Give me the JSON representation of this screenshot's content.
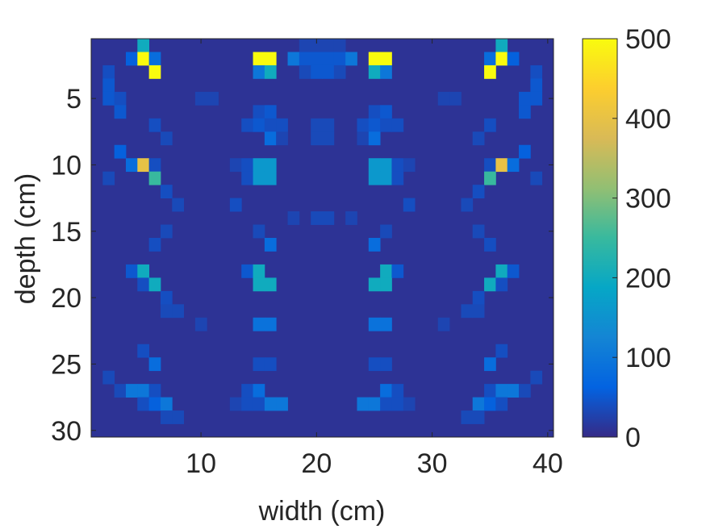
{
  "chart_data": {
    "type": "heatmap",
    "title": "",
    "xlabel": "width (cm)",
    "ylabel": "depth (cm)",
    "xlim": [
      0.5,
      40.5
    ],
    "ylim": [
      0.5,
      30.5
    ],
    "y_reversed": true,
    "x_ticks": [
      10,
      20,
      30,
      40
    ],
    "y_ticks": [
      5,
      10,
      15,
      20,
      25,
      30
    ],
    "colorbar": {
      "range": [
        0,
        500
      ],
      "ticks": [
        0,
        100,
        200,
        300,
        400,
        500
      ],
      "colormap": "parula",
      "colormap_stops": [
        "#352a87",
        "#0363e1",
        "#1485d4",
        "#06a7c6",
        "#38b99e",
        "#92bf73",
        "#d9ba56",
        "#fcce2e",
        "#f9fb0e"
      ]
    },
    "background_value": 10,
    "cells": [
      [
        1,
        5,
        200
      ],
      [
        1,
        19,
        30
      ],
      [
        1,
        20,
        30
      ],
      [
        1,
        21,
        30
      ],
      [
        1,
        22,
        30
      ],
      [
        1,
        36,
        200
      ],
      [
        2,
        4,
        60
      ],
      [
        2,
        5,
        500
      ],
      [
        2,
        6,
        80
      ],
      [
        2,
        15,
        500
      ],
      [
        2,
        16,
        500
      ],
      [
        2,
        18,
        100
      ],
      [
        2,
        19,
        50
      ],
      [
        2,
        20,
        50
      ],
      [
        2,
        21,
        50
      ],
      [
        2,
        22,
        50
      ],
      [
        2,
        23,
        100
      ],
      [
        2,
        25,
        500
      ],
      [
        2,
        26,
        500
      ],
      [
        2,
        35,
        80
      ],
      [
        2,
        36,
        500
      ],
      [
        2,
        37,
        60
      ],
      [
        3,
        2,
        40
      ],
      [
        3,
        6,
        500
      ],
      [
        3,
        15,
        100
      ],
      [
        3,
        16,
        200
      ],
      [
        3,
        19,
        35
      ],
      [
        3,
        20,
        50
      ],
      [
        3,
        21,
        50
      ],
      [
        3,
        22,
        35
      ],
      [
        3,
        25,
        200
      ],
      [
        3,
        26,
        100
      ],
      [
        3,
        35,
        500
      ],
      [
        3,
        39,
        40
      ],
      [
        4,
        2,
        50
      ],
      [
        4,
        39,
        50
      ],
      [
        5,
        2,
        50
      ],
      [
        5,
        3,
        40
      ],
      [
        5,
        10,
        30
      ],
      [
        5,
        11,
        30
      ],
      [
        5,
        31,
        30
      ],
      [
        5,
        32,
        30
      ],
      [
        5,
        38,
        50
      ],
      [
        5,
        39,
        50
      ],
      [
        6,
        3,
        50
      ],
      [
        6,
        15,
        40
      ],
      [
        6,
        16,
        50
      ],
      [
        6,
        25,
        40
      ],
      [
        6,
        26,
        50
      ],
      [
        6,
        38,
        50
      ],
      [
        7,
        6,
        40
      ],
      [
        7,
        14,
        40
      ],
      [
        7,
        15,
        50
      ],
      [
        7,
        16,
        40
      ],
      [
        7,
        17,
        40
      ],
      [
        7,
        20,
        35
      ],
      [
        7,
        21,
        35
      ],
      [
        7,
        24,
        40
      ],
      [
        7,
        25,
        50
      ],
      [
        7,
        26,
        40
      ],
      [
        7,
        27,
        40
      ],
      [
        7,
        35,
        40
      ],
      [
        8,
        7,
        35
      ],
      [
        8,
        16,
        80
      ],
      [
        8,
        17,
        30
      ],
      [
        8,
        20,
        35
      ],
      [
        8,
        21,
        35
      ],
      [
        8,
        24,
        30
      ],
      [
        8,
        25,
        80
      ],
      [
        8,
        34,
        35
      ],
      [
        9,
        3,
        60
      ],
      [
        9,
        38,
        60
      ],
      [
        10,
        4,
        80
      ],
      [
        10,
        5,
        400
      ],
      [
        10,
        6,
        40
      ],
      [
        10,
        13,
        30
      ],
      [
        10,
        14,
        40
      ],
      [
        10,
        15,
        160
      ],
      [
        10,
        16,
        160
      ],
      [
        10,
        25,
        160
      ],
      [
        10,
        26,
        160
      ],
      [
        10,
        27,
        40
      ],
      [
        10,
        28,
        30
      ],
      [
        10,
        35,
        40
      ],
      [
        10,
        36,
        400
      ],
      [
        10,
        37,
        80
      ],
      [
        11,
        2,
        35
      ],
      [
        11,
        6,
        250
      ],
      [
        11,
        14,
        40
      ],
      [
        11,
        15,
        160
      ],
      [
        11,
        16,
        160
      ],
      [
        11,
        25,
        160
      ],
      [
        11,
        26,
        160
      ],
      [
        11,
        27,
        40
      ],
      [
        11,
        35,
        250
      ],
      [
        11,
        39,
        35
      ],
      [
        12,
        7,
        40
      ],
      [
        12,
        34,
        40
      ],
      [
        13,
        8,
        35
      ],
      [
        13,
        13,
        40
      ],
      [
        13,
        28,
        40
      ],
      [
        13,
        33,
        35
      ],
      [
        14,
        18,
        30
      ],
      [
        14,
        20,
        35
      ],
      [
        14,
        21,
        35
      ],
      [
        14,
        23,
        30
      ],
      [
        15,
        7,
        35
      ],
      [
        15,
        15,
        35
      ],
      [
        15,
        26,
        35
      ],
      [
        15,
        34,
        35
      ],
      [
        16,
        6,
        40
      ],
      [
        16,
        16,
        80
      ],
      [
        16,
        25,
        80
      ],
      [
        16,
        35,
        40
      ],
      [
        18,
        4,
        50
      ],
      [
        18,
        5,
        200
      ],
      [
        18,
        14,
        50
      ],
      [
        18,
        15,
        200
      ],
      [
        18,
        26,
        200
      ],
      [
        18,
        27,
        50
      ],
      [
        18,
        36,
        200
      ],
      [
        18,
        37,
        50
      ],
      [
        19,
        5,
        40
      ],
      [
        19,
        6,
        200
      ],
      [
        19,
        15,
        200
      ],
      [
        19,
        16,
        200
      ],
      [
        19,
        25,
        200
      ],
      [
        19,
        26,
        200
      ],
      [
        19,
        35,
        200
      ],
      [
        19,
        36,
        40
      ],
      [
        20,
        7,
        40
      ],
      [
        20,
        34,
        40
      ],
      [
        21,
        7,
        35
      ],
      [
        21,
        8,
        35
      ],
      [
        21,
        33,
        35
      ],
      [
        21,
        34,
        35
      ],
      [
        22,
        10,
        30
      ],
      [
        22,
        15,
        90
      ],
      [
        22,
        16,
        90
      ],
      [
        22,
        25,
        90
      ],
      [
        22,
        26,
        90
      ],
      [
        22,
        31,
        30
      ],
      [
        24,
        5,
        40
      ],
      [
        24,
        36,
        40
      ],
      [
        25,
        6,
        80
      ],
      [
        25,
        15,
        40
      ],
      [
        25,
        16,
        40
      ],
      [
        25,
        25,
        40
      ],
      [
        25,
        26,
        40
      ],
      [
        25,
        35,
        80
      ],
      [
        26,
        2,
        35
      ],
      [
        26,
        39,
        35
      ],
      [
        27,
        3,
        35
      ],
      [
        27,
        4,
        100
      ],
      [
        27,
        5,
        100
      ],
      [
        27,
        6,
        40
      ],
      [
        27,
        14,
        40
      ],
      [
        27,
        15,
        80
      ],
      [
        27,
        26,
        80
      ],
      [
        27,
        27,
        40
      ],
      [
        27,
        35,
        40
      ],
      [
        27,
        36,
        100
      ],
      [
        27,
        37,
        100
      ],
      [
        27,
        38,
        35
      ],
      [
        28,
        5,
        40
      ],
      [
        28,
        6,
        60
      ],
      [
        28,
        7,
        100
      ],
      [
        28,
        13,
        30
      ],
      [
        28,
        14,
        40
      ],
      [
        28,
        15,
        40
      ],
      [
        28,
        16,
        100
      ],
      [
        28,
        17,
        100
      ],
      [
        28,
        24,
        100
      ],
      [
        28,
        25,
        100
      ],
      [
        28,
        26,
        40
      ],
      [
        28,
        27,
        40
      ],
      [
        28,
        28,
        30
      ],
      [
        28,
        34,
        100
      ],
      [
        28,
        35,
        60
      ],
      [
        28,
        36,
        40
      ],
      [
        29,
        7,
        35
      ],
      [
        29,
        8,
        35
      ],
      [
        29,
        33,
        35
      ],
      [
        29,
        34,
        35
      ]
    ]
  }
}
